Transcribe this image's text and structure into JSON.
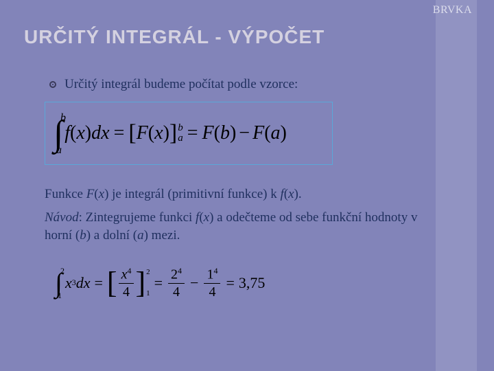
{
  "header": {
    "corner_label": "BRVKA",
    "title": "URČITÝ INTEGRÁL - VÝPOČET"
  },
  "intro": "Určitý integrál budeme počítat podle vzorce:",
  "main_formula": {
    "lower": "a",
    "upper": "b",
    "integrand_fn": "f",
    "integrand_var": "x",
    "differential": "dx",
    "antiderivative": "F",
    "eval_upper": "b",
    "eval_lower": "a",
    "rhs_term1_fn": "F",
    "rhs_term1_arg": "b",
    "rhs_term2_fn": "F",
    "rhs_term2_arg": "a"
  },
  "explanation1": {
    "prefix": "Funkce ",
    "F": "F",
    "x1": "x",
    "mid": ") je integrál (primitivní funkce) k ",
    "f": "f",
    "x2": "x",
    "suffix": ")."
  },
  "explanation2": {
    "lead": "Návod",
    "body_a": ": Zintegrujeme funkci ",
    "f": "f",
    "x": "x",
    "body_b": ") a odečteme od sebe funkční hodnoty v horní (",
    "b": "b",
    "body_c": ") a dolní (",
    "a": "a",
    "body_d": ") mezi."
  },
  "example": {
    "lower": "1",
    "upper": "2",
    "integrand_base": "x",
    "integrand_exp": "3",
    "differential": "dx",
    "antideriv_num_base": "x",
    "antideriv_num_exp": "4",
    "antideriv_den": "4",
    "eval_upper": "2",
    "eval_lower": "1",
    "term1_num_base": "2",
    "term1_num_exp": "4",
    "term1_den": "4",
    "term2_num_base": "1",
    "term2_num_exp": "4",
    "term2_den": "4",
    "result": "3,75"
  },
  "colors": {
    "background": "#8284b9",
    "stripe": "#9193c2",
    "title": "#d4d1e0",
    "body_text": "#1f2f5e",
    "formula_border": "#5aa8d8"
  }
}
